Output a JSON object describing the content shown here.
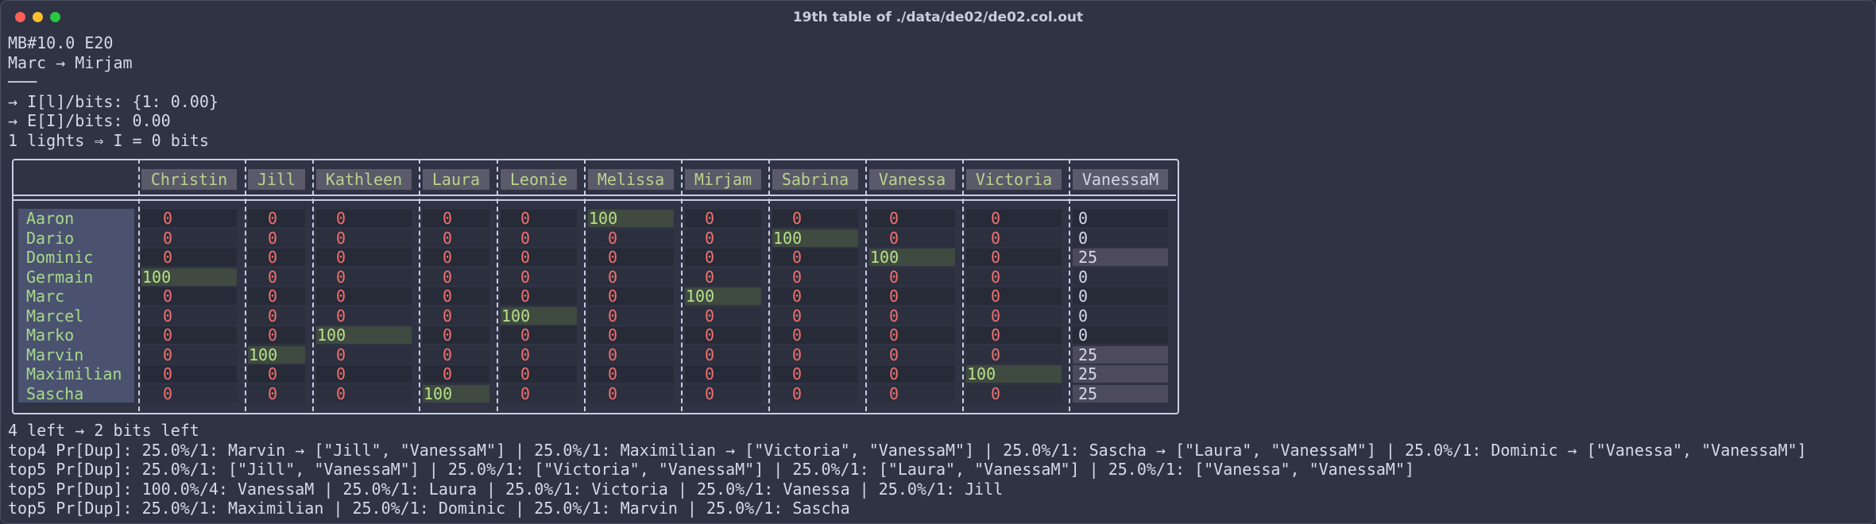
{
  "window": {
    "title": "19th table of ./data/de02/de02.col.out"
  },
  "header_lines": [
    "MB#10.0 E20",
    "Marc → Mirjam",
    "───",
    "→ I[l]/bits: {1: 0.00}",
    "→ E[I]/bits: 0.00",
    "1 lights ⇒ I = 0 bits"
  ],
  "table": {
    "columns": [
      "Christin",
      "Jill",
      "Kathleen",
      "Laura",
      "Leonie",
      "Melissa",
      "Mirjam",
      "Sabrina",
      "Vanessa",
      "Victoria",
      "VanessaM"
    ],
    "rows": [
      {
        "name": "Aaron",
        "values": [
          "0",
          "0",
          "0",
          "0",
          "0",
          "100",
          "0",
          "0",
          "0",
          "0",
          "0"
        ]
      },
      {
        "name": "Dario",
        "values": [
          "0",
          "0",
          "0",
          "0",
          "0",
          "0",
          "0",
          "100",
          "0",
          "0",
          "0"
        ]
      },
      {
        "name": "Dominic",
        "values": [
          "0",
          "0",
          "0",
          "0",
          "0",
          "0",
          "0",
          "0",
          "100",
          "0",
          "25"
        ]
      },
      {
        "name": "Germain",
        "values": [
          "100",
          "0",
          "0",
          "0",
          "0",
          "0",
          "0",
          "0",
          "0",
          "0",
          "0"
        ]
      },
      {
        "name": "Marc",
        "values": [
          "0",
          "0",
          "0",
          "0",
          "0",
          "0",
          "100",
          "0",
          "0",
          "0",
          "0"
        ]
      },
      {
        "name": "Marcel",
        "values": [
          "0",
          "0",
          "0",
          "0",
          "100",
          "0",
          "0",
          "0",
          "0",
          "0",
          "0"
        ]
      },
      {
        "name": "Marko",
        "values": [
          "0",
          "0",
          "100",
          "0",
          "0",
          "0",
          "0",
          "0",
          "0",
          "0",
          "0"
        ]
      },
      {
        "name": "Marvin",
        "values": [
          "0",
          "100",
          "0",
          "0",
          "0",
          "0",
          "0",
          "0",
          "0",
          "0",
          "25"
        ]
      },
      {
        "name": "Maximilian",
        "values": [
          "0",
          "0",
          "0",
          "0",
          "0",
          "0",
          "0",
          "0",
          "0",
          "100",
          "25"
        ]
      },
      {
        "name": "Sascha",
        "values": [
          "0",
          "0",
          "0",
          "100",
          "0",
          "0",
          "0",
          "0",
          "0",
          "0",
          "25"
        ]
      }
    ]
  },
  "footer_lines": [
    "4 left → 2 bits left",
    "top4 Pr[Dup]: 25.0%/1: Marvin → [\"Jill\", \"VanessaM\"] | 25.0%/1: Maximilian → [\"Victoria\", \"VanessaM\"] | 25.0%/1: Sascha → [\"Laura\", \"VanessaM\"] | 25.0%/1: Dominic → [\"Vanessa\", \"VanessaM\"]",
    "top5 Pr[Dup]: 25.0%/1: [\"Jill\", \"VanessaM\"] | 25.0%/1: [\"Victoria\", \"VanessaM\"] | 25.0%/1: [\"Laura\", \"VanessaM\"] | 25.0%/1: [\"Vanessa\", \"VanessaM\"]",
    "top5 Pr[Dup]: 100.0%/4: VanessaM | 25.0%/1: Laura | 25.0%/1: Victoria | 25.0%/1: Vanessa | 25.0%/1: Jill",
    "top5 Pr[Dup]: 25.0%/1: Maximilian | 25.0%/1: Dominic | 25.0%/1: Marvin | 25.0%/1: Sascha"
  ],
  "colors": {
    "background": "#2f3343",
    "name_text": "#a8d98a",
    "zero_text": "#f07070",
    "highlight_bg": "#3f4a40",
    "partial_bg": "#4d4a5c",
    "header_bg": "#5a5a6a"
  }
}
